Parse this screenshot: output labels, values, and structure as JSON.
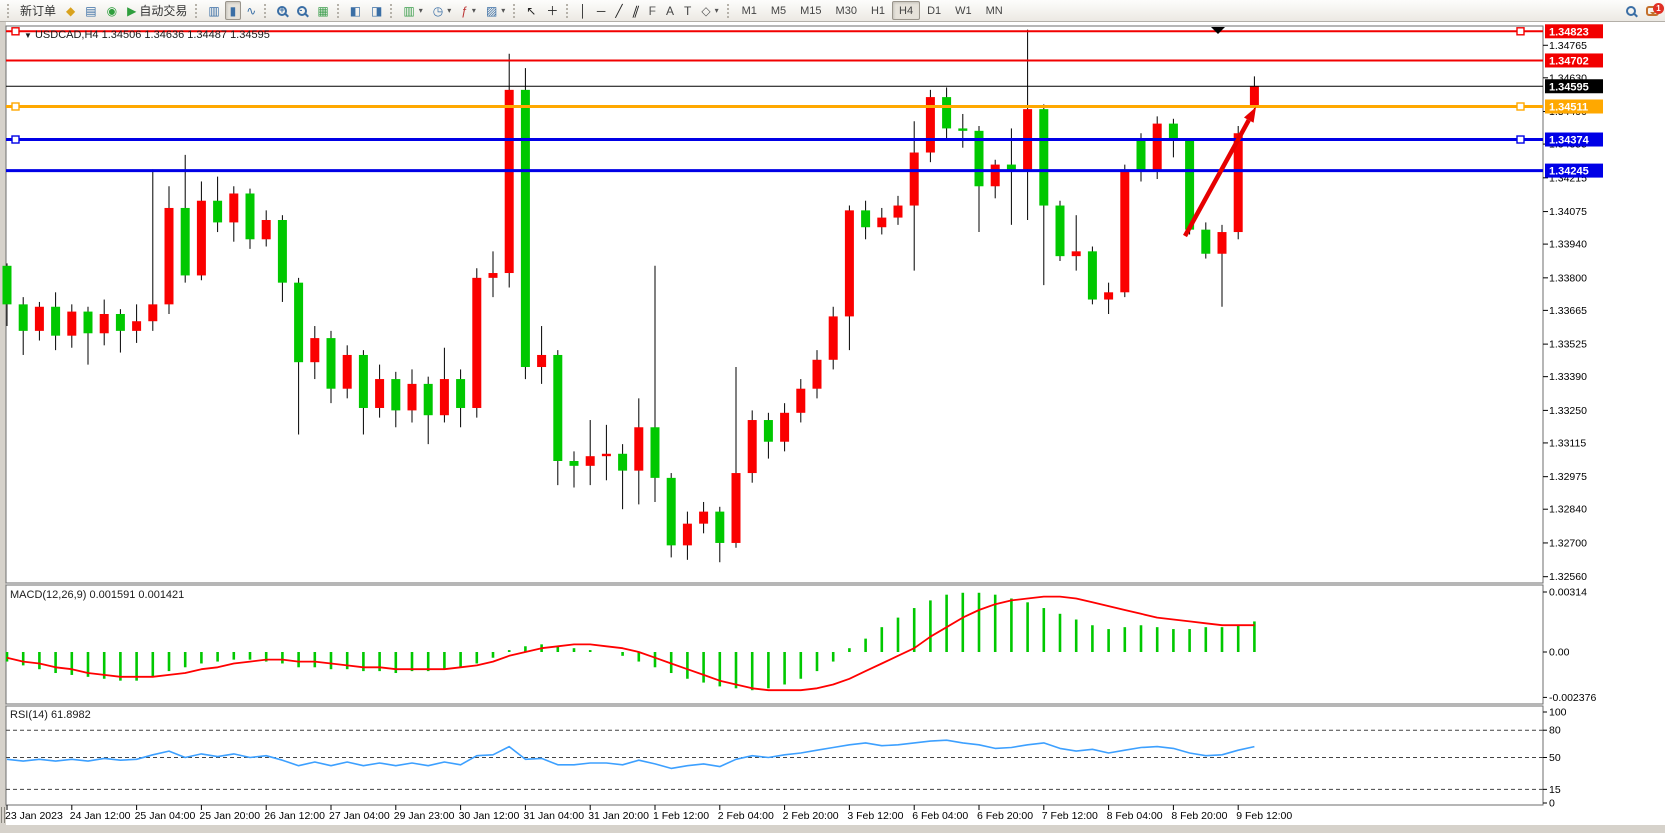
{
  "toolbar": {
    "groups": [
      {
        "name": "trade",
        "items": [
          {
            "name": "new-order-button",
            "label": "新订单"
          },
          {
            "name": "market-watch-button",
            "icon": "market-watch-icon",
            "glyph": "◆",
            "color": "#d9a21d"
          },
          {
            "name": "navigator-button",
            "icon": "navigator-icon",
            "glyph": "▤",
            "color": "#3a6ea5"
          },
          {
            "name": "signals-button",
            "icon": "signals-icon",
            "glyph": "◉",
            "color": "#2e9e3c"
          },
          {
            "name": "autotrading-button",
            "label": "自动交易",
            "icon": "autotrading-icon",
            "glyph": "▶",
            "color": "#2e9e3c"
          }
        ]
      },
      {
        "name": "chart-type",
        "items": [
          {
            "name": "bar-chart-button",
            "icon": "bar-chart-icon",
            "glyph": "▥",
            "color": "#3a6ea5"
          },
          {
            "name": "candlestick-button",
            "icon": "candlestick-icon",
            "glyph": "▮",
            "color": "#3a6ea5",
            "active": true
          },
          {
            "name": "line-chart-button",
            "icon": "line-chart-icon",
            "glyph": "∿",
            "color": "#3a6ea5"
          }
        ]
      },
      {
        "name": "zoom",
        "items": [
          {
            "name": "zoom-in-button",
            "icon": "zoom-in-icon",
            "special": "mag",
            "sign": "+"
          },
          {
            "name": "zoom-out-button",
            "icon": "zoom-out-icon",
            "special": "mag",
            "sign": "-"
          },
          {
            "name": "tile-windows-button",
            "icon": "tile-windows-icon",
            "glyph": "▦",
            "color": "#3c9e4d"
          }
        ]
      },
      {
        "name": "arrange",
        "items": [
          {
            "name": "auto-arrange-button",
            "icon": "auto-arrange-icon",
            "glyph": "◧",
            "color": "#3a6ea5"
          },
          {
            "name": "cascade-button",
            "icon": "cascade-icon",
            "glyph": "◨",
            "color": "#3a6ea5"
          }
        ]
      },
      {
        "name": "dropdowns",
        "items": [
          {
            "name": "new-chart-button",
            "icon": "new-chart-icon",
            "glyph": "▥",
            "color": "#3c9e4d",
            "caret": true
          },
          {
            "name": "period-button",
            "icon": "clock-icon",
            "glyph": "◷",
            "color": "#3a6ea5",
            "caret": true
          },
          {
            "name": "indicators-button",
            "icon": "indicator-icon",
            "glyph": "ƒ",
            "color": "#b33",
            "caret": true
          },
          {
            "name": "templates-button",
            "icon": "template-icon",
            "glyph": "▨",
            "color": "#3a6ea5",
            "caret": true
          }
        ]
      },
      {
        "name": "pointer",
        "items": [
          {
            "name": "cursor-button",
            "icon": "cursor-icon",
            "glyph": "↖",
            "color": "#222"
          },
          {
            "name": "crosshair-button",
            "icon": "crosshair-icon",
            "glyph": "＋",
            "color": "#222"
          }
        ]
      },
      {
        "name": "objects",
        "items": [
          {
            "name": "vertical-line-button",
            "icon": "vline-icon",
            "glyph": "│",
            "color": "#222"
          },
          {
            "name": "horizontal-line-button",
            "icon": "hline-icon",
            "glyph": "─",
            "color": "#222"
          },
          {
            "name": "trendline-button",
            "icon": "trendline-icon",
            "glyph": "╱",
            "color": "#222"
          },
          {
            "name": "channel-button",
            "icon": "channel-icon",
            "glyph": "∥",
            "color": "#222",
            "skew": true
          },
          {
            "name": "fibonacci-button",
            "icon": "fibonacci-icon",
            "glyph": "F",
            "color": "#555"
          },
          {
            "name": "text-button",
            "icon": "text-icon",
            "glyph": "A",
            "color": "#444"
          },
          {
            "name": "label-button",
            "icon": "label-icon",
            "glyph": "T",
            "color": "#444"
          },
          {
            "name": "shapes-button",
            "icon": "shapes-icon",
            "glyph": "◇",
            "color": "#555",
            "caret": true
          }
        ]
      }
    ],
    "timeframes": [
      "M1",
      "M5",
      "M15",
      "M30",
      "H1",
      "H4",
      "D1",
      "W1",
      "MN"
    ],
    "active_timeframe": "H4",
    "notification_count": "1"
  },
  "chart_data": {
    "type": "candlestick",
    "symbol": "USDCAD",
    "timeframe": "H4",
    "title_overlay": "USDCAD,H4 1.34506 1.34636 1.34487 1.34595",
    "ohlc_display": {
      "open": "1.34506",
      "high": "1.34636",
      "low": "1.34487",
      "close": "1.34595"
    },
    "bull_color": "#fa0000",
    "bear_color": "#00c800",
    "wick_color": "#000000",
    "axis_range": {
      "top": 1.34845,
      "bottom": 1.3256
    },
    "price_ticks": [
      "1.34765",
      "1.34630",
      "1.34490",
      "1.34355",
      "1.34215",
      "1.34075",
      "1.33940",
      "1.33800",
      "1.33665",
      "1.33525",
      "1.33390",
      "1.33250",
      "1.33115",
      "1.32975",
      "1.32840",
      "1.32700",
      "1.32560"
    ],
    "hlines": [
      {
        "price": 1.34823,
        "label": "1.34823",
        "color": "#f20000",
        "width": 2,
        "handles": true
      },
      {
        "price": 1.34702,
        "label": "1.34702",
        "color": "#f20000",
        "width": 2,
        "handles": false
      },
      {
        "price": 1.34595,
        "label": "1.34595",
        "color": "#000000",
        "width": 1,
        "handles": false,
        "current": true
      },
      {
        "price": 1.34511,
        "label": "1.34511",
        "color": "#ffa800",
        "width": 3,
        "handles": true
      },
      {
        "price": 1.34374,
        "label": "1.34374",
        "color": "#0000e6",
        "width": 3,
        "handles": true
      },
      {
        "price": 1.34245,
        "label": "1.34245",
        "color": "#0000e6",
        "width": 3,
        "handles": false
      }
    ],
    "candles": [
      [
        1.3385,
        1.3386,
        1.336,
        1.3369
      ],
      [
        1.3369,
        1.3372,
        1.3348,
        1.3358
      ],
      [
        1.3358,
        1.337,
        1.3354,
        1.3368
      ],
      [
        1.3368,
        1.3374,
        1.335,
        1.3356
      ],
      [
        1.3356,
        1.3369,
        1.3351,
        1.3366
      ],
      [
        1.3366,
        1.3368,
        1.3344,
        1.3357
      ],
      [
        1.3357,
        1.3371,
        1.3352,
        1.3365
      ],
      [
        1.3365,
        1.3367,
        1.3349,
        1.3358
      ],
      [
        1.3358,
        1.3369,
        1.3353,
        1.3362
      ],
      [
        1.3362,
        1.3425,
        1.3358,
        1.3369
      ],
      [
        1.3369,
        1.3418,
        1.3365,
        1.3409
      ],
      [
        1.3409,
        1.3431,
        1.3378,
        1.3381
      ],
      [
        1.3381,
        1.342,
        1.3379,
        1.3412
      ],
      [
        1.3412,
        1.3422,
        1.3399,
        1.3403
      ],
      [
        1.3403,
        1.3418,
        1.3395,
        1.3415
      ],
      [
        1.3415,
        1.3417,
        1.3392,
        1.3396
      ],
      [
        1.3396,
        1.3408,
        1.3393,
        1.3404
      ],
      [
        1.3404,
        1.3406,
        1.337,
        1.3378
      ],
      [
        1.3378,
        1.338,
        1.3315,
        1.3345
      ],
      [
        1.3345,
        1.336,
        1.3338,
        1.3355
      ],
      [
        1.3355,
        1.3358,
        1.3328,
        1.3334
      ],
      [
        1.3334,
        1.3352,
        1.333,
        1.3348
      ],
      [
        1.3348,
        1.335,
        1.3315,
        1.3326
      ],
      [
        1.3326,
        1.3344,
        1.3322,
        1.3338
      ],
      [
        1.3338,
        1.3341,
        1.3318,
        1.3325
      ],
      [
        1.3325,
        1.3342,
        1.332,
        1.3336
      ],
      [
        1.3336,
        1.3339,
        1.3311,
        1.3323
      ],
      [
        1.3323,
        1.3351,
        1.332,
        1.3338
      ],
      [
        1.3338,
        1.3342,
        1.3318,
        1.3326
      ],
      [
        1.3326,
        1.3384,
        1.3322,
        1.338
      ],
      [
        1.338,
        1.3391,
        1.3372,
        1.3382
      ],
      [
        1.3382,
        1.3473,
        1.3376,
        1.3458
      ],
      [
        1.3458,
        1.3467,
        1.3338,
        1.3343
      ],
      [
        1.3343,
        1.336,
        1.3336,
        1.3348
      ],
      [
        1.3348,
        1.335,
        1.3294,
        1.3304
      ],
      [
        1.3304,
        1.3308,
        1.3293,
        1.3302
      ],
      [
        1.3302,
        1.3321,
        1.3294,
        1.3306
      ],
      [
        1.3306,
        1.3319,
        1.3296,
        1.3307
      ],
      [
        1.3307,
        1.3311,
        1.3284,
        1.33
      ],
      [
        1.33,
        1.333,
        1.3286,
        1.3318
      ],
      [
        1.3318,
        1.3385,
        1.3287,
        1.3297
      ],
      [
        1.3297,
        1.3299,
        1.3264,
        1.3269
      ],
      [
        1.3269,
        1.3283,
        1.3263,
        1.3278
      ],
      [
        1.3278,
        1.3287,
        1.3274,
        1.3283
      ],
      [
        1.3283,
        1.3285,
        1.3262,
        1.327
      ],
      [
        1.327,
        1.3343,
        1.3268,
        1.3299
      ],
      [
        1.3299,
        1.3325,
        1.3295,
        1.3321
      ],
      [
        1.3321,
        1.3324,
        1.3305,
        1.3312
      ],
      [
        1.3312,
        1.3328,
        1.3308,
        1.3324
      ],
      [
        1.3324,
        1.3338,
        1.332,
        1.3334
      ],
      [
        1.3334,
        1.335,
        1.333,
        1.3346
      ],
      [
        1.3346,
        1.3368,
        1.3342,
        1.3364
      ],
      [
        1.3364,
        1.341,
        1.335,
        1.3408
      ],
      [
        1.3408,
        1.3412,
        1.3396,
        1.3401
      ],
      [
        1.3401,
        1.3409,
        1.3398,
        1.3405
      ],
      [
        1.3405,
        1.3414,
        1.3402,
        1.341
      ],
      [
        1.341,
        1.3445,
        1.3383,
        1.3432
      ],
      [
        1.3432,
        1.3458,
        1.3428,
        1.3455
      ],
      [
        1.3455,
        1.3459,
        1.3437,
        1.3442
      ],
      [
        1.3442,
        1.3448,
        1.3434,
        1.3441
      ],
      [
        1.3441,
        1.3443,
        1.3399,
        1.3418
      ],
      [
        1.3418,
        1.3429,
        1.3413,
        1.3427
      ],
      [
        1.3427,
        1.3442,
        1.3402,
        1.3425
      ],
      [
        1.3425,
        1.3483,
        1.3404,
        1.345
      ],
      [
        1.345,
        1.3452,
        1.3377,
        1.341
      ],
      [
        1.341,
        1.3412,
        1.3387,
        1.3389
      ],
      [
        1.3389,
        1.3406,
        1.3383,
        1.3391
      ],
      [
        1.3391,
        1.3393,
        1.3369,
        1.3371
      ],
      [
        1.3371,
        1.3378,
        1.3365,
        1.3374
      ],
      [
        1.3374,
        1.3427,
        1.3372,
        1.3425
      ],
      [
        1.3437,
        1.344,
        1.342,
        1.3424
      ],
      [
        1.3424,
        1.3447,
        1.3421,
        1.3444
      ],
      [
        1.3444,
        1.3446,
        1.343,
        1.3437
      ],
      [
        1.3437,
        1.3438,
        1.3398,
        1.34
      ],
      [
        1.34,
        1.3403,
        1.3388,
        1.339
      ],
      [
        1.339,
        1.3402,
        1.3368,
        1.3399
      ],
      [
        1.3399,
        1.3443,
        1.3396,
        1.344
      ],
      [
        1.34506,
        1.34636,
        1.34487,
        1.34595
      ]
    ],
    "time_labels": [
      "23 Jan 2023",
      "24 Jan 12:00",
      "25 Jan 04:00",
      "25 Jan 20:00",
      "26 Jan 12:00",
      "27 Jan 04:00",
      "29 Jan 23:00",
      "30 Jan 12:00",
      "31 Jan 04:00",
      "31 Jan 20:00",
      "1 Feb 12:00",
      "2 Feb 04:00",
      "2 Feb 20:00",
      "3 Feb 12:00",
      "6 Feb 04:00",
      "6 Feb 20:00",
      "7 Feb 12:00",
      "8 Feb 04:00",
      "8 Feb 20:00",
      "9 Feb 12:00"
    ],
    "macd": {
      "label": "MACD(12,26,9) 0.001591 0.001421",
      "main_value": "0.001591",
      "signal_value": "0.001421",
      "axis_ticks": [
        "0.00314",
        "0.00",
        "-0.002376"
      ],
      "axis_values": [
        0.00314,
        0.0,
        -0.002376
      ],
      "hist_color": "#00c800",
      "signal_color": "#ff0000",
      "unit": 0.0001,
      "hist": [
        -5,
        -7,
        -9,
        -11,
        -12,
        -13,
        -14,
        -15,
        -15,
        -13,
        -10,
        -8,
        -6,
        -5,
        -4,
        -4,
        -5,
        -6,
        -8,
        -8,
        -9,
        -9,
        -10,
        -10,
        -11,
        -10,
        -10,
        -9,
        -8,
        -6,
        -3,
        1,
        3,
        4,
        3,
        2,
        1,
        0,
        -2,
        -5,
        -8,
        -11,
        -14,
        -16,
        -18,
        -19,
        -20,
        -19,
        -17,
        -14,
        -10,
        -5,
        2,
        7,
        13,
        18,
        23,
        27,
        30,
        31,
        31,
        30,
        28,
        26,
        23,
        20,
        17,
        14,
        12,
        13,
        14,
        13,
        12,
        12,
        13,
        13,
        14,
        16
      ],
      "signal": [
        -3,
        -5,
        -6,
        -8,
        -9,
        -11,
        -12,
        -13,
        -13,
        -13,
        -12,
        -11,
        -9,
        -8,
        -6,
        -5,
        -4,
        -4,
        -5,
        -5,
        -6,
        -7,
        -8,
        -8,
        -9,
        -9,
        -9,
        -9,
        -8,
        -7,
        -5,
        -2,
        0,
        2,
        3,
        4,
        4,
        3,
        2,
        0,
        -3,
        -6,
        -9,
        -12,
        -15,
        -17,
        -19,
        -20,
        -20,
        -20,
        -19,
        -17,
        -14,
        -10,
        -6,
        -2,
        2,
        8,
        13,
        18,
        22,
        25,
        27,
        28,
        29,
        29,
        28,
        26,
        24,
        22,
        20,
        18,
        17,
        16,
        15,
        14,
        14,
        14
      ]
    },
    "rsi": {
      "label": "RSI(14) 61.8982",
      "value": "61.8982",
      "line_color": "#3da0ff",
      "levels": [
        "100",
        "80",
        "50",
        "15",
        "0"
      ],
      "level_values": [
        100,
        80,
        50,
        15,
        0
      ],
      "dashed_levels": [
        80,
        50,
        15
      ],
      "series": [
        48,
        46,
        48,
        46,
        48,
        46,
        49,
        47,
        48,
        53,
        57,
        50,
        54,
        51,
        54,
        50,
        52,
        47,
        41,
        45,
        41,
        45,
        41,
        44,
        41,
        44,
        41,
        45,
        42,
        52,
        53,
        62,
        48,
        49,
        42,
        42,
        44,
        44,
        42,
        47,
        43,
        38,
        41,
        43,
        40,
        48,
        52,
        50,
        53,
        55,
        58,
        61,
        64,
        66,
        63,
        64,
        66,
        68,
        69,
        66,
        64,
        60,
        61,
        64,
        66,
        60,
        57,
        59,
        55,
        58,
        61,
        62,
        60,
        55,
        52,
        53,
        58,
        62
      ]
    },
    "arrow": {
      "from": [
        1185,
        236
      ],
      "to": [
        1256,
        107
      ],
      "color": "#e60000"
    },
    "scroll_marker_x": 1218
  }
}
